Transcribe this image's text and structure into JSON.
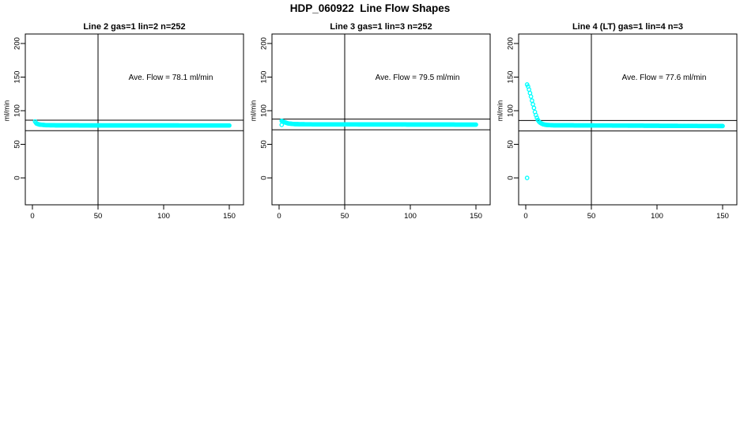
{
  "page": {
    "background": "#ffffff",
    "main_title": "HDP_060922  Line Flow Shapes"
  },
  "chart_data": [
    {
      "type": "scatter",
      "title": "Line 2 gas=1 lin=2 n=252",
      "annotation": "Ave. Flow =  78.1  ml/min",
      "ave_flow": 78.1,
      "ylabel": "ml/min",
      "x_ticks": [
        0,
        50,
        100,
        150
      ],
      "y_ticks": [
        0,
        50,
        100,
        150,
        200
      ],
      "xlim": [
        0,
        150
      ],
      "ylim": [
        0,
        200
      ],
      "grid": false,
      "legend": "none",
      "vline_x": 50,
      "ref_lines_y": [
        85.9,
        70.3
      ],
      "marker": "open-circle",
      "marker_color": "#00FFFF",
      "series": {
        "name": "flow",
        "x_start": 2,
        "x_end": 150,
        "count": 250,
        "keypoints": [
          [
            2,
            84
          ],
          [
            3,
            81
          ],
          [
            5,
            79.5
          ],
          [
            10,
            78.5
          ],
          [
            20,
            78.2
          ],
          [
            150,
            78
          ]
        ]
      },
      "outlier_points": []
    },
    {
      "type": "scatter",
      "title": "Line 3 gas=1 lin=3 n=252",
      "annotation": "Ave. Flow =  79.5  ml/min",
      "ave_flow": 79.5,
      "ylabel": "ml/min",
      "x_ticks": [
        0,
        50,
        100,
        150
      ],
      "y_ticks": [
        0,
        50,
        100,
        150,
        200
      ],
      "xlim": [
        0,
        150
      ],
      "ylim": [
        0,
        200
      ],
      "grid": false,
      "legend": "none",
      "vline_x": 50,
      "ref_lines_y": [
        87.5,
        71.6
      ],
      "marker": "open-circle",
      "marker_color": "#00FFFF",
      "series": {
        "name": "flow",
        "x_start": 2,
        "x_end": 150,
        "count": 250,
        "keypoints": [
          [
            2,
            85
          ],
          [
            4,
            83
          ],
          [
            7,
            81
          ],
          [
            12,
            80
          ],
          [
            25,
            79.7
          ],
          [
            150,
            79.3
          ]
        ]
      },
      "outlier_points": [
        [
          2,
          79
        ]
      ]
    },
    {
      "type": "scatter",
      "title": "Line 4 (LT) gas=1 lin=4 n=3",
      "annotation": "Ave. Flow =  77.6  ml/min",
      "ave_flow": 77.6,
      "ylabel": "ml/min",
      "x_ticks": [
        0,
        50,
        100,
        150
      ],
      "y_ticks": [
        0,
        50,
        100,
        150,
        200
      ],
      "xlim": [
        0,
        150
      ],
      "ylim": [
        0,
        200
      ],
      "grid": false,
      "legend": "none",
      "vline_x": 50,
      "ref_lines_y": [
        85.4,
        69.8
      ],
      "marker": "open-circle",
      "marker_color": "#00FFFF",
      "series": {
        "name": "flow",
        "x_start": 1,
        "x_end": 150,
        "count": 200,
        "keypoints": [
          [
            1,
            139
          ],
          [
            2,
            135
          ],
          [
            3,
            128
          ],
          [
            4,
            121
          ],
          [
            5,
            113
          ],
          [
            6,
            106
          ],
          [
            7,
            98
          ],
          [
            8,
            92
          ],
          [
            9,
            87
          ],
          [
            10,
            84
          ],
          [
            11,
            82
          ],
          [
            13,
            80
          ],
          [
            15,
            79
          ],
          [
            20,
            78.3
          ],
          [
            60,
            78
          ],
          [
            100,
            77.6
          ],
          [
            150,
            77.2
          ]
        ]
      },
      "outlier_points": [
        [
          1,
          0
        ]
      ]
    }
  ]
}
